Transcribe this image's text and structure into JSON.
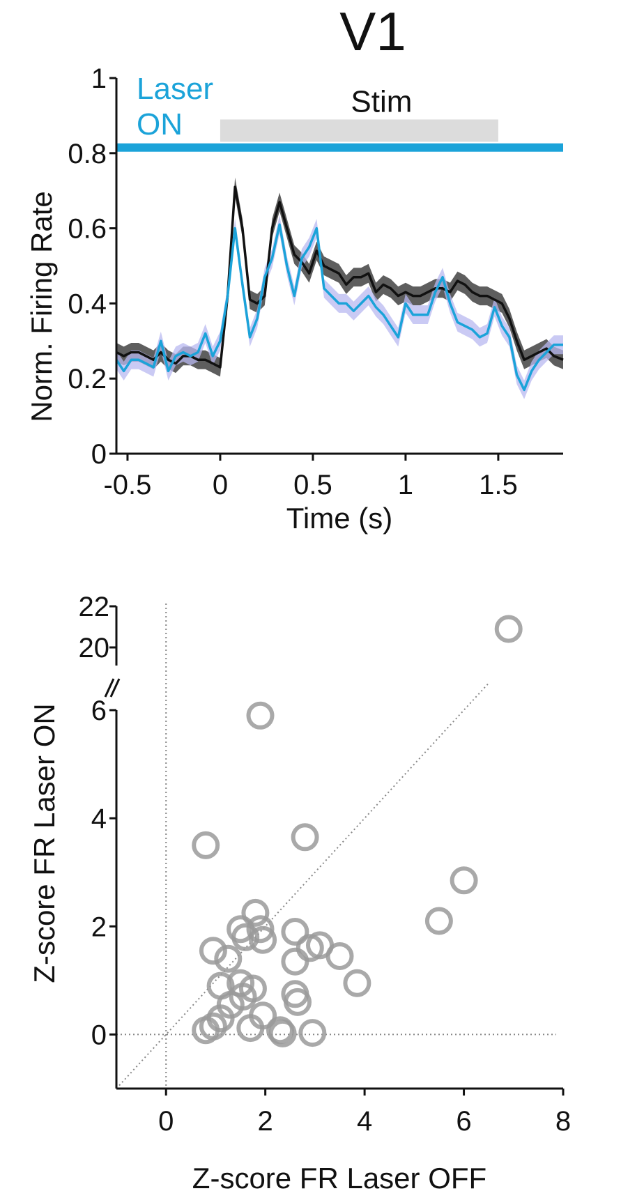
{
  "title": "V1",
  "colors": {
    "laser_on": "#1ba3d9",
    "laser_on_band": "#b8b8f0",
    "laser_off": "#111111",
    "laser_off_band": "#555555",
    "stim_bar": "#dcdcdc",
    "scatter_circle": "#9a9a9a",
    "reference_line": "#888888"
  },
  "chart_data": [
    {
      "type": "line",
      "title": "V1",
      "xlabel": "Time (s)",
      "ylabel": "Norm. Firing Rate",
      "xlim": [
        -0.56,
        1.85
      ],
      "ylim": [
        0,
        1
      ],
      "xticks": [
        -0.5,
        0,
        0.5,
        1,
        1.5
      ],
      "xtick_labels": [
        "-0.5",
        "0",
        "0.5",
        "1",
        "1.5"
      ],
      "yticks": [
        0,
        0.2,
        0.4,
        0.6,
        0.8,
        1
      ],
      "ytick_labels": [
        "0",
        "0.2",
        "0.4",
        "0.6",
        "0.8",
        "1"
      ],
      "annotations": {
        "laser_label": [
          "Laser",
          "ON"
        ],
        "laser_level": 0.815,
        "stim_label": "Stim",
        "stim_start": 0,
        "stim_end": 1.5,
        "stim_level": 0.86
      },
      "x": [
        -0.56,
        -0.52,
        -0.48,
        -0.44,
        -0.4,
        -0.36,
        -0.32,
        -0.28,
        -0.24,
        -0.2,
        -0.16,
        -0.12,
        -0.08,
        -0.04,
        0.0,
        0.04,
        0.08,
        0.12,
        0.16,
        0.2,
        0.24,
        0.28,
        0.32,
        0.36,
        0.4,
        0.44,
        0.48,
        0.52,
        0.56,
        0.6,
        0.64,
        0.68,
        0.72,
        0.76,
        0.8,
        0.84,
        0.88,
        0.92,
        0.96,
        1.0,
        1.04,
        1.08,
        1.12,
        1.16,
        1.2,
        1.24,
        1.28,
        1.32,
        1.36,
        1.4,
        1.44,
        1.48,
        1.52,
        1.56,
        1.6,
        1.64,
        1.68,
        1.72,
        1.76,
        1.8,
        1.85
      ],
      "series": [
        {
          "condition": "laser_off",
          "values": [
            0.27,
            0.26,
            0.27,
            0.27,
            0.26,
            0.25,
            0.27,
            0.25,
            0.24,
            0.26,
            0.26,
            0.25,
            0.25,
            0.24,
            0.23,
            0.42,
            0.71,
            0.6,
            0.41,
            0.4,
            0.42,
            0.6,
            0.67,
            0.6,
            0.53,
            0.51,
            0.48,
            0.54,
            0.5,
            0.49,
            0.48,
            0.45,
            0.47,
            0.47,
            0.48,
            0.43,
            0.45,
            0.44,
            0.42,
            0.43,
            0.42,
            0.42,
            0.43,
            0.44,
            0.44,
            0.43,
            0.46,
            0.45,
            0.43,
            0.42,
            0.42,
            0.41,
            0.4,
            0.36,
            0.3,
            0.25,
            0.26,
            0.27,
            0.28,
            0.26,
            0.25
          ],
          "band_half_width": 0.025
        },
        {
          "condition": "laser_on",
          "values": [
            0.25,
            0.22,
            0.25,
            0.25,
            0.24,
            0.23,
            0.3,
            0.22,
            0.26,
            0.27,
            0.26,
            0.27,
            0.32,
            0.26,
            0.3,
            0.42,
            0.6,
            0.45,
            0.31,
            0.36,
            0.47,
            0.52,
            0.61,
            0.5,
            0.42,
            0.52,
            0.55,
            0.6,
            0.44,
            0.42,
            0.4,
            0.4,
            0.38,
            0.4,
            0.42,
            0.39,
            0.37,
            0.34,
            0.31,
            0.4,
            0.37,
            0.37,
            0.37,
            0.43,
            0.47,
            0.4,
            0.35,
            0.34,
            0.33,
            0.31,
            0.32,
            0.39,
            0.34,
            0.31,
            0.21,
            0.17,
            0.22,
            0.25,
            0.27,
            0.29,
            0.29
          ],
          "band_half_width": 0.025
        }
      ]
    },
    {
      "type": "scatter",
      "xlabel": "Z-score FR Laser OFF",
      "ylabel": "Z-score FR Laser ON",
      "xlim": [
        -1,
        8
      ],
      "ylim_lower": [
        -1,
        6
      ],
      "ylim_upper": [
        19,
        22
      ],
      "broken_y_axis": true,
      "xticks": [
        0,
        2,
        4,
        6,
        8
      ],
      "xtick_labels": [
        "0",
        "2",
        "4",
        "6",
        "8"
      ],
      "yticks_lower": [
        0,
        2,
        4,
        6
      ],
      "ytick_labels_lower": [
        "0",
        "2",
        "4",
        "6"
      ],
      "yticks_upper": [
        20,
        22
      ],
      "ytick_labels_upper": [
        "20",
        "22"
      ],
      "reference_lines": [
        "x=0",
        "y=0",
        "unity"
      ],
      "points": [
        {
          "x": 6.9,
          "y": 20.9
        },
        {
          "x": 1.9,
          "y": 5.9
        },
        {
          "x": 0.8,
          "y": 3.5
        },
        {
          "x": 2.8,
          "y": 3.65
        },
        {
          "x": 6.0,
          "y": 2.85
        },
        {
          "x": 5.5,
          "y": 2.1
        },
        {
          "x": 1.8,
          "y": 2.25
        },
        {
          "x": 1.5,
          "y": 1.95
        },
        {
          "x": 1.9,
          "y": 1.95
        },
        {
          "x": 1.6,
          "y": 1.8
        },
        {
          "x": 1.95,
          "y": 1.75
        },
        {
          "x": 2.6,
          "y": 1.9
        },
        {
          "x": 3.1,
          "y": 1.65
        },
        {
          "x": 2.9,
          "y": 1.6
        },
        {
          "x": 3.5,
          "y": 1.45
        },
        {
          "x": 0.95,
          "y": 1.55
        },
        {
          "x": 1.25,
          "y": 1.4
        },
        {
          "x": 2.6,
          "y": 1.35
        },
        {
          "x": 3.85,
          "y": 0.95
        },
        {
          "x": 1.1,
          "y": 0.9
        },
        {
          "x": 1.5,
          "y": 0.95
        },
        {
          "x": 1.75,
          "y": 0.85
        },
        {
          "x": 1.55,
          "y": 0.7
        },
        {
          "x": 2.6,
          "y": 0.75
        },
        {
          "x": 2.65,
          "y": 0.6
        },
        {
          "x": 1.3,
          "y": 0.55
        },
        {
          "x": 1.95,
          "y": 0.35
        },
        {
          "x": 1.1,
          "y": 0.3
        },
        {
          "x": 0.95,
          "y": 0.15
        },
        {
          "x": 0.8,
          "y": 0.08
        },
        {
          "x": 1.7,
          "y": 0.12
        },
        {
          "x": 2.3,
          "y": 0.08
        },
        {
          "x": 2.35,
          "y": 0.02
        },
        {
          "x": 2.95,
          "y": 0.03
        }
      ]
    }
  ]
}
